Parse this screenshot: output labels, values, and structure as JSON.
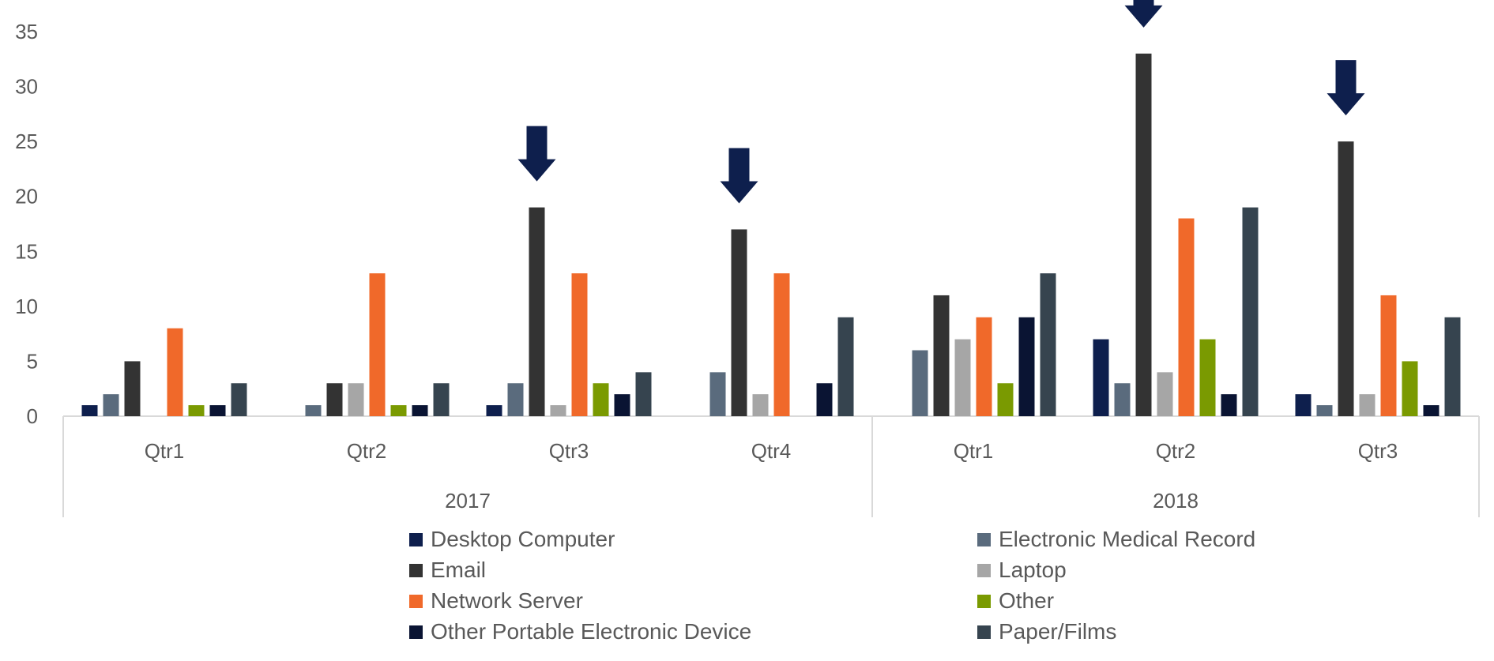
{
  "chart_data": {
    "type": "bar",
    "ylim": [
      0,
      35
    ],
    "yticks": [
      "0",
      "5",
      "10",
      "15",
      "20",
      "25",
      "30",
      "35"
    ],
    "grid": false,
    "legend_position": "bottom",
    "groups": [
      {
        "label": "2017",
        "categories": [
          "Qtr1",
          "Qtr2",
          "Qtr3",
          "Qtr4"
        ]
      },
      {
        "label": "2018",
        "categories": [
          "Qtr1",
          "Qtr2",
          "Qtr3"
        ]
      }
    ],
    "categories": [
      "Qtr1",
      "Qtr2",
      "Qtr3",
      "Qtr4",
      "Qtr1",
      "Qtr2",
      "Qtr3"
    ],
    "series": [
      {
        "name": "Desktop Computer",
        "color": "#0e1f4d",
        "values": [
          1,
          0,
          1,
          0,
          0,
          7,
          2
        ]
      },
      {
        "name": "Electronic Medical Record",
        "color": "#5a6b7d",
        "values": [
          2,
          1,
          3,
          4,
          6,
          3,
          1
        ]
      },
      {
        "name": "Email",
        "color": "#333333",
        "values": [
          5,
          3,
          19,
          17,
          11,
          33,
          25
        ]
      },
      {
        "name": "Laptop",
        "color": "#a6a6a6",
        "values": [
          0,
          3,
          1,
          2,
          7,
          4,
          2
        ]
      },
      {
        "name": "Network Server",
        "color": "#f0692a",
        "values": [
          8,
          13,
          13,
          13,
          9,
          18,
          11
        ]
      },
      {
        "name": "Other",
        "color": "#7a9a01",
        "values": [
          1,
          1,
          3,
          0,
          3,
          7,
          5
        ]
      },
      {
        "name": "Other Portable Electronic Device",
        "color": "#0a1433",
        "values": [
          1,
          1,
          2,
          3,
          9,
          2,
          1
        ]
      },
      {
        "name": "Paper/Films",
        "color": "#36444f",
        "values": [
          3,
          3,
          4,
          9,
          13,
          19,
          9
        ]
      }
    ],
    "annotations": [
      {
        "type": "arrow",
        "category_index": 2,
        "series": "Email",
        "color": "#0e1f4d"
      },
      {
        "type": "arrow",
        "category_index": 3,
        "series": "Email",
        "color": "#0e1f4d"
      },
      {
        "type": "arrow",
        "category_index": 5,
        "series": "Email",
        "color": "#0e1f4d"
      },
      {
        "type": "arrow",
        "category_index": 6,
        "series": "Email",
        "color": "#0e1f4d"
      }
    ]
  }
}
